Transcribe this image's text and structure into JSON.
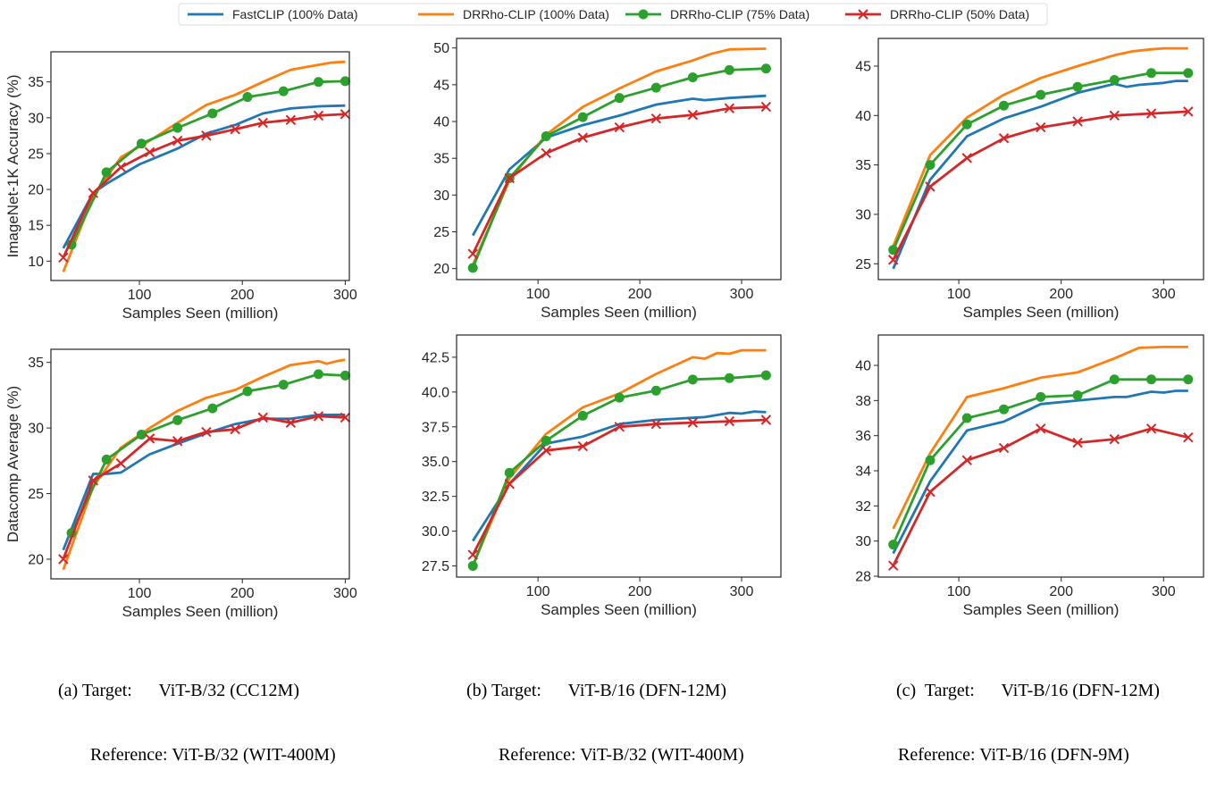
{
  "legend": {
    "placement": "top-center",
    "entries": [
      {
        "name": "FastCLIP (100% Data)",
        "color": "#1f77b4",
        "marker": "none"
      },
      {
        "name": "DRRho-CLIP (100% Data)",
        "color": "#ff7f0e",
        "marker": "none"
      },
      {
        "name": "DRRho-CLIP (75% Data)",
        "color": "#2ca02c",
        "marker": "circle"
      },
      {
        "name": "DRRho-CLIP (50% Data)",
        "color": "#d62728",
        "marker": "x"
      }
    ]
  },
  "captions": [
    {
      "line1": "(a) Target:      ViT-B/32 (CC12M)",
      "line2": "Reference: ViT-B/32 (WIT-400M)"
    },
    {
      "line1": "(b) Target:      ViT-B/16 (DFN-12M)",
      "line2": "Reference: ViT-B/32 (WIT-400M)"
    },
    {
      "line1": "(c)  Target:      ViT-B/16 (DFN-12M)",
      "line2": "Reference: ViT-B/16 (DFN-9M)"
    }
  ],
  "chart_data": [
    {
      "type": "line",
      "xlabel": "Samples Seen (million)",
      "ylabel": "ImageNet-1K Accuracy (%)",
      "xlim": [
        14,
        304
      ],
      "ylim": [
        7.3,
        39.2
      ],
      "xticks": [
        100,
        200,
        300
      ],
      "yticks": [
        10,
        15,
        20,
        25,
        30,
        35
      ],
      "tick_decimals": 0,
      "grid": false,
      "series": [
        {
          "name": "FastCLIP (100% Data)",
          "x": [
            26,
            55,
            68,
            100,
            137,
            165,
            193,
            220,
            247,
            275,
            300
          ],
          "y": [
            11.8,
            19.5,
            20.8,
            23.5,
            25.7,
            27.8,
            29,
            30.6,
            31.3,
            31.6,
            31.7
          ]
        },
        {
          "name": "DRRho-CLIP (100% Data)",
          "x": [
            26,
            55,
            82,
            110,
            137,
            165,
            193,
            220,
            247,
            275,
            287,
            300
          ],
          "y": [
            8.5,
            19,
            24.5,
            26.8,
            29.3,
            31.8,
            33.2,
            35,
            36.7,
            37.4,
            37.7,
            37.8
          ]
        },
        {
          "name": "DRRho-CLIP (75% Data)",
          "x": [
            34,
            68,
            102,
            137,
            171,
            205,
            240,
            274,
            300
          ],
          "y": [
            12.3,
            22.4,
            26.4,
            28.6,
            30.6,
            32.9,
            33.7,
            35,
            35.1
          ]
        },
        {
          "name": "DRRho-CLIP (50% Data)",
          "x": [
            26,
            55,
            82,
            110,
            137,
            165,
            193,
            220,
            247,
            274,
            300
          ],
          "y": [
            10.5,
            19.5,
            23.1,
            25.2,
            26.8,
            27.5,
            28.4,
            29.3,
            29.7,
            30.3,
            30.5
          ]
        }
      ]
    },
    {
      "type": "line",
      "xlabel": "Samples Seen (million)",
      "ylabel": "",
      "xlim": [
        20,
        338.6
      ],
      "ylim": [
        18.5,
        51.3
      ],
      "xticks": [
        100,
        200,
        300
      ],
      "yticks": [
        20,
        25,
        30,
        35,
        40,
        45,
        50
      ],
      "tick_decimals": 0,
      "grid": false,
      "series": [
        {
          "name": "FastCLIP (100% Data)",
          "x": [
            36,
            72,
            108,
            144,
            180,
            216,
            252,
            264,
            288,
            324
          ],
          "y": [
            24.5,
            33.5,
            37.8,
            39.5,
            40.8,
            42.3,
            43.1,
            42.9,
            43.2,
            43.5
          ]
        },
        {
          "name": "DRRho-CLIP (100% Data)",
          "x": [
            36,
            72,
            108,
            144,
            180,
            216,
            252,
            270,
            288,
            324
          ],
          "y": [
            20.5,
            32,
            38.2,
            42,
            44.5,
            46.8,
            48.3,
            49.2,
            49.8,
            49.9
          ]
        },
        {
          "name": "DRRho-CLIP (75% Data)",
          "x": [
            36,
            72,
            108,
            144,
            180,
            216,
            252,
            288,
            324
          ],
          "y": [
            20.1,
            32.3,
            38,
            40.6,
            43.2,
            44.6,
            46,
            47,
            47.2
          ]
        },
        {
          "name": "DRRho-CLIP (50% Data)",
          "x": [
            36,
            72,
            108,
            144,
            180,
            216,
            252,
            288,
            324
          ],
          "y": [
            22,
            32.3,
            35.7,
            37.8,
            39.2,
            40.4,
            40.9,
            41.8,
            42
          ]
        }
      ]
    },
    {
      "type": "line",
      "xlabel": "Samples Seen (million)",
      "ylabel": "",
      "xlim": [
        21.4,
        339
      ],
      "ylim": [
        23.4,
        47.8
      ],
      "xticks": [
        100,
        200,
        300
      ],
      "yticks": [
        25,
        30,
        35,
        40,
        45
      ],
      "tick_decimals": 0,
      "grid": false,
      "series": [
        {
          "name": "FastCLIP (100% Data)",
          "x": [
            36,
            72,
            108,
            144,
            180,
            216,
            252,
            264,
            276,
            300,
            312,
            324
          ],
          "y": [
            24.5,
            33.5,
            37.9,
            39.7,
            40.9,
            42.3,
            43.2,
            42.9,
            43.1,
            43.3,
            43.5,
            43.5
          ]
        },
        {
          "name": "DRRho-CLIP (100% Data)",
          "x": [
            36,
            72,
            108,
            144,
            180,
            216,
            252,
            270,
            288,
            300,
            324
          ],
          "y": [
            26.8,
            36,
            39.8,
            42.1,
            43.8,
            45,
            46.1,
            46.5,
            46.7,
            46.8,
            46.8
          ]
        },
        {
          "name": "DRRho-CLIP (75% Data)",
          "x": [
            36,
            72,
            108,
            144,
            180,
            216,
            252,
            288,
            324
          ],
          "y": [
            26.4,
            35,
            39.1,
            41,
            42.1,
            42.9,
            43.6,
            44.3,
            44.3
          ]
        },
        {
          "name": "DRRho-CLIP (50% Data)",
          "x": [
            36,
            72,
            108,
            144,
            180,
            216,
            252,
            288,
            324
          ],
          "y": [
            25.4,
            32.8,
            35.7,
            37.7,
            38.8,
            39.4,
            40,
            40.2,
            40.4
          ]
        }
      ]
    },
    {
      "type": "line",
      "xlabel": "Samples Seen (million)",
      "ylabel": "Datacomp Average (%)",
      "xlim": [
        14,
        304
      ],
      "ylim": [
        18.5,
        36
      ],
      "xticks": [
        100,
        200,
        300
      ],
      "yticks": [
        20,
        25,
        30,
        35
      ],
      "tick_decimals": 0,
      "grid": false,
      "series": [
        {
          "name": "FastCLIP (100% Data)",
          "x": [
            26,
            55,
            68,
            82,
            110,
            137,
            165,
            193,
            220,
            247,
            274,
            300
          ],
          "y": [
            20.7,
            26.5,
            26.5,
            26.6,
            28,
            28.8,
            29.6,
            30.3,
            30.7,
            30.7,
            31,
            31
          ]
        },
        {
          "name": "DRRho-CLIP (100% Data)",
          "x": [
            26,
            55,
            82,
            110,
            137,
            165,
            193,
            220,
            247,
            274,
            282,
            292,
            300
          ],
          "y": [
            19.2,
            25.5,
            28.5,
            30,
            31.3,
            32.3,
            32.9,
            33.9,
            34.8,
            35.1,
            34.9,
            35.1,
            35.2
          ]
        },
        {
          "name": "DRRho-CLIP (75% Data)",
          "x": [
            34,
            68,
            102,
            137,
            171,
            205,
            240,
            274,
            300
          ],
          "y": [
            22,
            27.6,
            29.5,
            30.6,
            31.5,
            32.8,
            33.3,
            34.1,
            34
          ]
        },
        {
          "name": "DRRho-CLIP (50% Data)",
          "x": [
            26,
            55,
            82,
            110,
            137,
            165,
            193,
            220,
            247,
            274,
            300
          ],
          "y": [
            20,
            26,
            27.3,
            29.2,
            29,
            29.7,
            29.9,
            30.8,
            30.4,
            30.9,
            30.8
          ]
        }
      ]
    },
    {
      "type": "line",
      "xlabel": "Samples Seen (million)",
      "ylabel": "",
      "xlim": [
        20,
        338.6
      ],
      "ylim": [
        26.7,
        44.1
      ],
      "xticks": [
        100,
        200,
        300
      ],
      "yticks": [
        27.5,
        30,
        32.5,
        35,
        37.5,
        40,
        42.5
      ],
      "tick_decimals": 1,
      "grid": false,
      "series": [
        {
          "name": "FastCLIP (100% Data)",
          "x": [
            36,
            72,
            108,
            144,
            180,
            216,
            252,
            264,
            288,
            300,
            312,
            324
          ],
          "y": [
            29.3,
            33.4,
            36.3,
            36.8,
            37.7,
            38,
            38.15,
            38.2,
            38.5,
            38.45,
            38.6,
            38.55
          ]
        },
        {
          "name": "DRRho-CLIP (100% Data)",
          "x": [
            36,
            72,
            108,
            144,
            180,
            216,
            252,
            264,
            276,
            288,
            300,
            324
          ],
          "y": [
            27.5,
            33.8,
            37,
            38.9,
            39.9,
            41.3,
            42.5,
            42.4,
            42.8,
            42.75,
            43,
            43
          ]
        },
        {
          "name": "DRRho-CLIP (75% Data)",
          "x": [
            36,
            72,
            108,
            144,
            180,
            216,
            252,
            288,
            324
          ],
          "y": [
            27.5,
            34.2,
            36.5,
            38.3,
            39.6,
            40.1,
            40.9,
            41,
            41.2
          ]
        },
        {
          "name": "DRRho-CLIP (50% Data)",
          "x": [
            36,
            72,
            108,
            144,
            180,
            216,
            252,
            288,
            324
          ],
          "y": [
            28.3,
            33.4,
            35.8,
            36.1,
            37.5,
            37.7,
            37.8,
            37.9,
            38
          ]
        }
      ]
    },
    {
      "type": "line",
      "xlabel": "Samples Seen (million)",
      "ylabel": "",
      "xlim": [
        21.4,
        339
      ],
      "ylim": [
        27.95,
        41.73
      ],
      "xticks": [
        100,
        200,
        300
      ],
      "yticks": [
        28,
        30,
        32,
        34,
        36,
        38,
        40
      ],
      "tick_decimals": 0,
      "grid": false,
      "series": [
        {
          "name": "FastCLIP (100% Data)",
          "x": [
            36,
            72,
            108,
            144,
            180,
            216,
            252,
            264,
            288,
            300,
            312,
            324
          ],
          "y": [
            29.3,
            33.4,
            36.3,
            36.8,
            37.8,
            38,
            38.2,
            38.2,
            38.5,
            38.45,
            38.55,
            38.55
          ]
        },
        {
          "name": "DRRho-CLIP (100% Data)",
          "x": [
            36,
            72,
            108,
            144,
            180,
            216,
            252,
            276,
            300,
            324
          ],
          "y": [
            30.7,
            35,
            38.2,
            38.7,
            39.3,
            39.6,
            40.4,
            41,
            41.05,
            41.05
          ]
        },
        {
          "name": "DRRho-CLIP (75% Data)",
          "x": [
            36,
            72,
            108,
            144,
            180,
            216,
            252,
            288,
            324
          ],
          "y": [
            29.8,
            34.6,
            37,
            37.5,
            38.2,
            38.3,
            39.2,
            39.2,
            39.2
          ]
        },
        {
          "name": "DRRho-CLIP (50% Data)",
          "x": [
            36,
            72,
            108,
            144,
            180,
            216,
            252,
            288,
            324
          ],
          "y": [
            28.6,
            32.8,
            34.6,
            35.3,
            36.4,
            35.6,
            35.8,
            36.4,
            35.9
          ]
        }
      ]
    }
  ]
}
